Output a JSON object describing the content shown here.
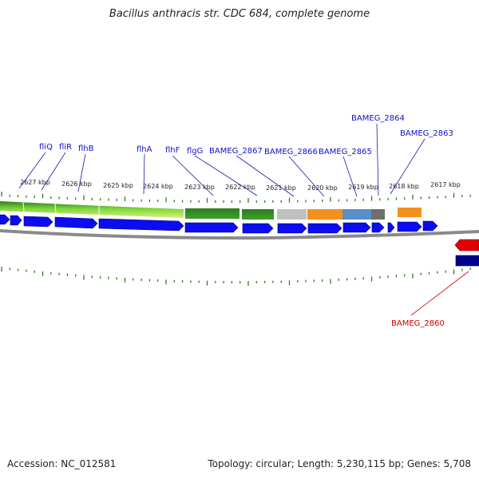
{
  "title": "Bacillus anthracis str. CDC 684, complete genome",
  "footer": {
    "accession": "Accession: NC_012581",
    "summary": "Topology: circular; Length: 5,230,115 bp; Genes: 5,708"
  },
  "scale_labels": [
    "2627 kbp",
    "2626 kbp",
    "2625 kbp",
    "2624 kbp",
    "2623 kbp",
    "2622 kbp",
    "2621 kbp",
    "2620 kbp",
    "2619 kbp",
    "2618 kbp",
    "2617 kbp"
  ],
  "gene_labels": [
    "fliQ",
    "fliR",
    "flhB",
    "flhA",
    "flhF",
    "flgG",
    "BAMEG_2867",
    "BAMEG_2866",
    "BAMEG_2865",
    "BAMEG_2864",
    "BAMEG_2863",
    "BAMEG_2860"
  ],
  "colors": {
    "label_forward": "#1010c8",
    "label_reverse": "#cc0000",
    "tick": "#2e7d1e",
    "forward_gene": "#0c0cf0",
    "reverse_gene_red": "#e00000",
    "reverse_gene_navy": "#00008b",
    "backbone": "#808080"
  }
}
